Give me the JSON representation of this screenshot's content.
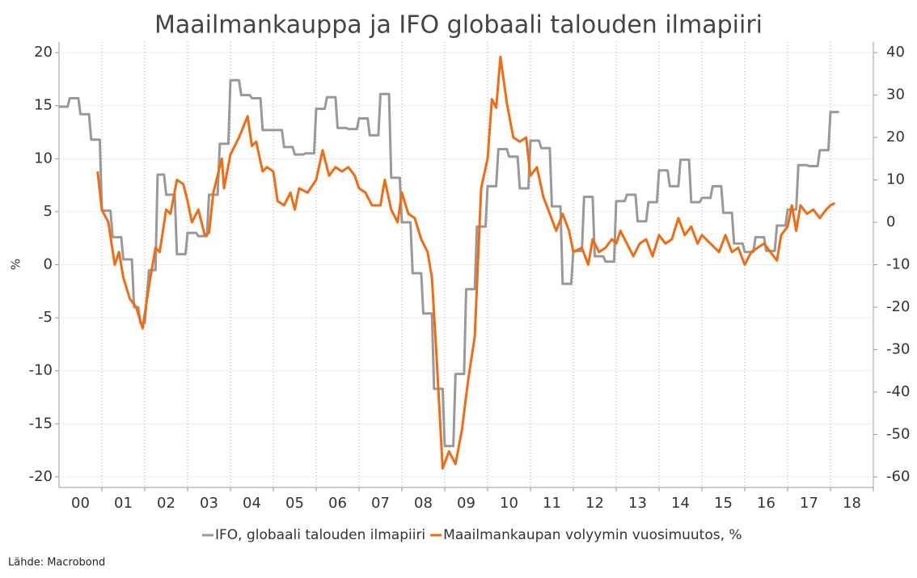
{
  "chart_data": {
    "type": "line",
    "title": "Maailmankauppa ja IFO globaali talouden ilmapiiri",
    "ylabel": "%",
    "source": "Lähde: Macrobond",
    "xlim": [
      2000,
      2019
    ],
    "xticks": [
      {
        "value": 2000.5,
        "label": "00"
      },
      {
        "value": 2001.5,
        "label": "01"
      },
      {
        "value": 2002.5,
        "label": "02"
      },
      {
        "value": 2003.5,
        "label": "03"
      },
      {
        "value": 2004.5,
        "label": "04"
      },
      {
        "value": 2005.5,
        "label": "05"
      },
      {
        "value": 2006.5,
        "label": "06"
      },
      {
        "value": 2007.5,
        "label": "07"
      },
      {
        "value": 2008.5,
        "label": "08"
      },
      {
        "value": 2009.5,
        "label": "09"
      },
      {
        "value": 2010.5,
        "label": "10"
      },
      {
        "value": 2011.5,
        "label": "11"
      },
      {
        "value": 2012.5,
        "label": "12"
      },
      {
        "value": 2013.5,
        "label": "13"
      },
      {
        "value": 2014.5,
        "label": "14"
      },
      {
        "value": 2015.5,
        "label": "15"
      },
      {
        "value": 2016.5,
        "label": "16"
      },
      {
        "value": 2017.5,
        "label": "17"
      },
      {
        "value": 2018.5,
        "label": "18"
      }
    ],
    "ylim": [
      -21,
      21
    ],
    "yticks": [
      -20,
      -15,
      -10,
      -5,
      0,
      5,
      10,
      15,
      20
    ],
    "y2lim": [
      -62.5,
      42.5
    ],
    "y2ticks": [
      -60,
      -50,
      -40,
      -30,
      -20,
      -10,
      0,
      10,
      20,
      30,
      40
    ],
    "grid": true,
    "series": [
      {
        "name": "IFO, globaali talouden ilmapiiri",
        "color": "#999999",
        "axis": "y",
        "x": [
          2000.0,
          2000.2,
          2000.25,
          2000.45,
          2000.5,
          2000.7,
          2000.75,
          2000.95,
          2001.0,
          2001.2,
          2001.25,
          2001.45,
          2001.5,
          2001.7,
          2001.75,
          2001.85,
          2001.9,
          2002.0,
          2002.1,
          2002.25,
          2002.3,
          2002.45,
          2002.5,
          2002.7,
          2002.75,
          2002.95,
          2003.0,
          2003.2,
          2003.25,
          2003.45,
          2003.5,
          2003.7,
          2003.75,
          2003.95,
          2004.0,
          2004.2,
          2004.25,
          2004.45,
          2004.5,
          2004.7,
          2004.75,
          2004.95,
          2005.0,
          2005.2,
          2005.25,
          2005.45,
          2005.5,
          2005.7,
          2005.75,
          2005.95,
          2006.0,
          2006.2,
          2006.25,
          2006.45,
          2006.5,
          2006.7,
          2006.75,
          2006.95,
          2007.0,
          2007.2,
          2007.25,
          2007.45,
          2007.5,
          2007.7,
          2007.75,
          2007.95,
          2008.0,
          2008.2,
          2008.25,
          2008.45,
          2008.5,
          2008.7,
          2008.75,
          2008.95,
          2009.0,
          2009.2,
          2009.25,
          2009.45,
          2009.5,
          2009.7,
          2009.75,
          2009.95,
          2010.0,
          2010.2,
          2010.25,
          2010.45,
          2010.5,
          2010.7,
          2010.75,
          2010.95,
          2011.0,
          2011.2,
          2011.25,
          2011.45,
          2011.5,
          2011.7,
          2011.75,
          2011.95,
          2012.0,
          2012.2,
          2012.25,
          2012.45,
          2012.5,
          2012.7,
          2012.75,
          2012.95,
          2013.0,
          2013.2,
          2013.25,
          2013.45,
          2013.5,
          2013.7,
          2013.75,
          2013.95,
          2014.0,
          2014.2,
          2014.25,
          2014.45,
          2014.5,
          2014.7,
          2014.75,
          2014.95,
          2015.0,
          2015.2,
          2015.25,
          2015.45,
          2015.5,
          2015.7,
          2015.75,
          2015.95,
          2016.0,
          2016.2,
          2016.25,
          2016.45,
          2016.5,
          2016.7,
          2016.75,
          2016.95,
          2017.0,
          2017.2,
          2017.25,
          2017.45,
          2017.5,
          2017.7,
          2017.75,
          2017.95,
          2018.0,
          2018.2
        ],
        "values": [
          14.9,
          14.9,
          15.7,
          15.7,
          14.2,
          14.2,
          11.8,
          11.8,
          5.1,
          5.1,
          2.6,
          2.6,
          0.5,
          0.5,
          -4.0,
          -4.0,
          -5.5,
          -5.5,
          -0.5,
          -0.5,
          8.5,
          8.5,
          6.6,
          6.6,
          1.0,
          1.0,
          3.0,
          3.0,
          2.7,
          2.7,
          6.6,
          6.6,
          11.4,
          11.4,
          17.4,
          17.4,
          16.0,
          16.0,
          15.7,
          15.7,
          12.7,
          12.7,
          12.7,
          12.7,
          11.1,
          11.1,
          10.4,
          10.4,
          10.5,
          10.5,
          14.7,
          14.7,
          15.8,
          15.8,
          12.9,
          12.9,
          12.8,
          12.8,
          13.8,
          13.8,
          12.2,
          12.2,
          16.1,
          16.1,
          8.2,
          8.2,
          4.0,
          4.0,
          -0.8,
          -0.8,
          -4.6,
          -4.6,
          -11.7,
          -11.7,
          -17.1,
          -17.1,
          -10.3,
          -10.3,
          -2.3,
          -2.3,
          3.6,
          3.6,
          7.4,
          7.4,
          10.9,
          10.9,
          10.2,
          10.2,
          7.2,
          7.2,
          11.7,
          11.7,
          11.0,
          11.0,
          5.5,
          5.5,
          -1.8,
          -1.8,
          1.3,
          1.3,
          6.4,
          6.4,
          0.8,
          0.8,
          0.3,
          0.3,
          6.0,
          6.0,
          6.6,
          6.6,
          4.1,
          4.1,
          5.9,
          5.9,
          8.9,
          8.9,
          7.4,
          7.4,
          9.9,
          9.9,
          5.9,
          5.9,
          6.3,
          6.3,
          7.4,
          7.4,
          4.9,
          4.9,
          2.0,
          2.0,
          1.2,
          1.2,
          2.6,
          2.6,
          1.3,
          1.3,
          3.7,
          3.7,
          5.2,
          5.2,
          9.4,
          9.4,
          9.3,
          9.3,
          10.8,
          10.8,
          14.4,
          14.4
        ]
      },
      {
        "name": "Maailmankaupan volyymin vuosimuutos, %",
        "color": "#f26b10",
        "axis": "y2",
        "x": [
          2000.9,
          2001.0,
          2001.15,
          2001.3,
          2001.4,
          2001.5,
          2001.65,
          2001.8,
          2001.95,
          2002.1,
          2002.25,
          2002.35,
          2002.5,
          2002.6,
          2002.75,
          2002.9,
          2003.0,
          2003.1,
          2003.25,
          2003.4,
          2003.5,
          2003.6,
          2003.8,
          2003.85,
          2004.0,
          2004.2,
          2004.4,
          2004.5,
          2004.6,
          2004.75,
          2004.85,
          2005.0,
          2005.1,
          2005.25,
          2005.4,
          2005.5,
          2005.6,
          2005.8,
          2006.0,
          2006.15,
          2006.3,
          2006.45,
          2006.6,
          2006.75,
          2006.9,
          2007.0,
          2007.15,
          2007.3,
          2007.5,
          2007.6,
          2007.75,
          2007.9,
          2008.0,
          2008.15,
          2008.3,
          2008.45,
          2008.6,
          2008.7,
          2008.8,
          2008.95,
          2009.1,
          2009.25,
          2009.4,
          2009.55,
          2009.7,
          2009.85,
          2010.0,
          2010.1,
          2010.2,
          2010.3,
          2010.45,
          2010.6,
          2010.75,
          2010.9,
          2011.0,
          2011.15,
          2011.3,
          2011.45,
          2011.6,
          2011.75,
          2011.9,
          2012.0,
          2012.2,
          2012.35,
          2012.45,
          2012.6,
          2012.75,
          2012.9,
          2013.0,
          2013.1,
          2013.25,
          2013.4,
          2013.55,
          2013.7,
          2013.85,
          2014.0,
          2014.15,
          2014.3,
          2014.45,
          2014.6,
          2014.75,
          2014.9,
          2015.0,
          2015.2,
          2015.4,
          2015.55,
          2015.7,
          2015.85,
          2016.0,
          2016.15,
          2016.3,
          2016.45,
          2016.6,
          2016.75,
          2016.85,
          2017.0,
          2017.1,
          2017.2,
          2017.3,
          2017.45,
          2017.6,
          2017.75,
          2017.9,
          2018.0,
          2018.1
        ],
        "values": [
          12,
          3,
          0,
          -10,
          -7,
          -13,
          -18,
          -20,
          -25,
          -15,
          -6,
          -7,
          3,
          2,
          10,
          9,
          5,
          0,
          3,
          -3,
          -2.5,
          7,
          15,
          8,
          16,
          20,
          25,
          18,
          19,
          12,
          13,
          12,
          5,
          4,
          7,
          3,
          8,
          7,
          10,
          17,
          11,
          13,
          12,
          13,
          11,
          8,
          7,
          4,
          4,
          10,
          3,
          0,
          7,
          2,
          1,
          -4,
          -7,
          -13,
          -30,
          -58,
          -54,
          -57,
          -49,
          -37,
          -27,
          8,
          15,
          29,
          27,
          39,
          28,
          20,
          19,
          20,
          11,
          13,
          6,
          2,
          -2,
          2,
          -2,
          -7,
          -6,
          -10,
          -4,
          -7,
          -6,
          -4,
          -5,
          -2,
          -5,
          -8,
          -5,
          -4,
          -8,
          -3,
          -5,
          -4,
          1,
          -3,
          -1,
          -5,
          -3,
          -5,
          -7,
          -3,
          -7,
          -6,
          -10,
          -7,
          -6,
          -5,
          -7,
          -9,
          -3,
          -1,
          4,
          -2,
          4,
          2,
          3,
          1,
          3,
          4,
          4.5
        ]
      }
    ]
  }
}
